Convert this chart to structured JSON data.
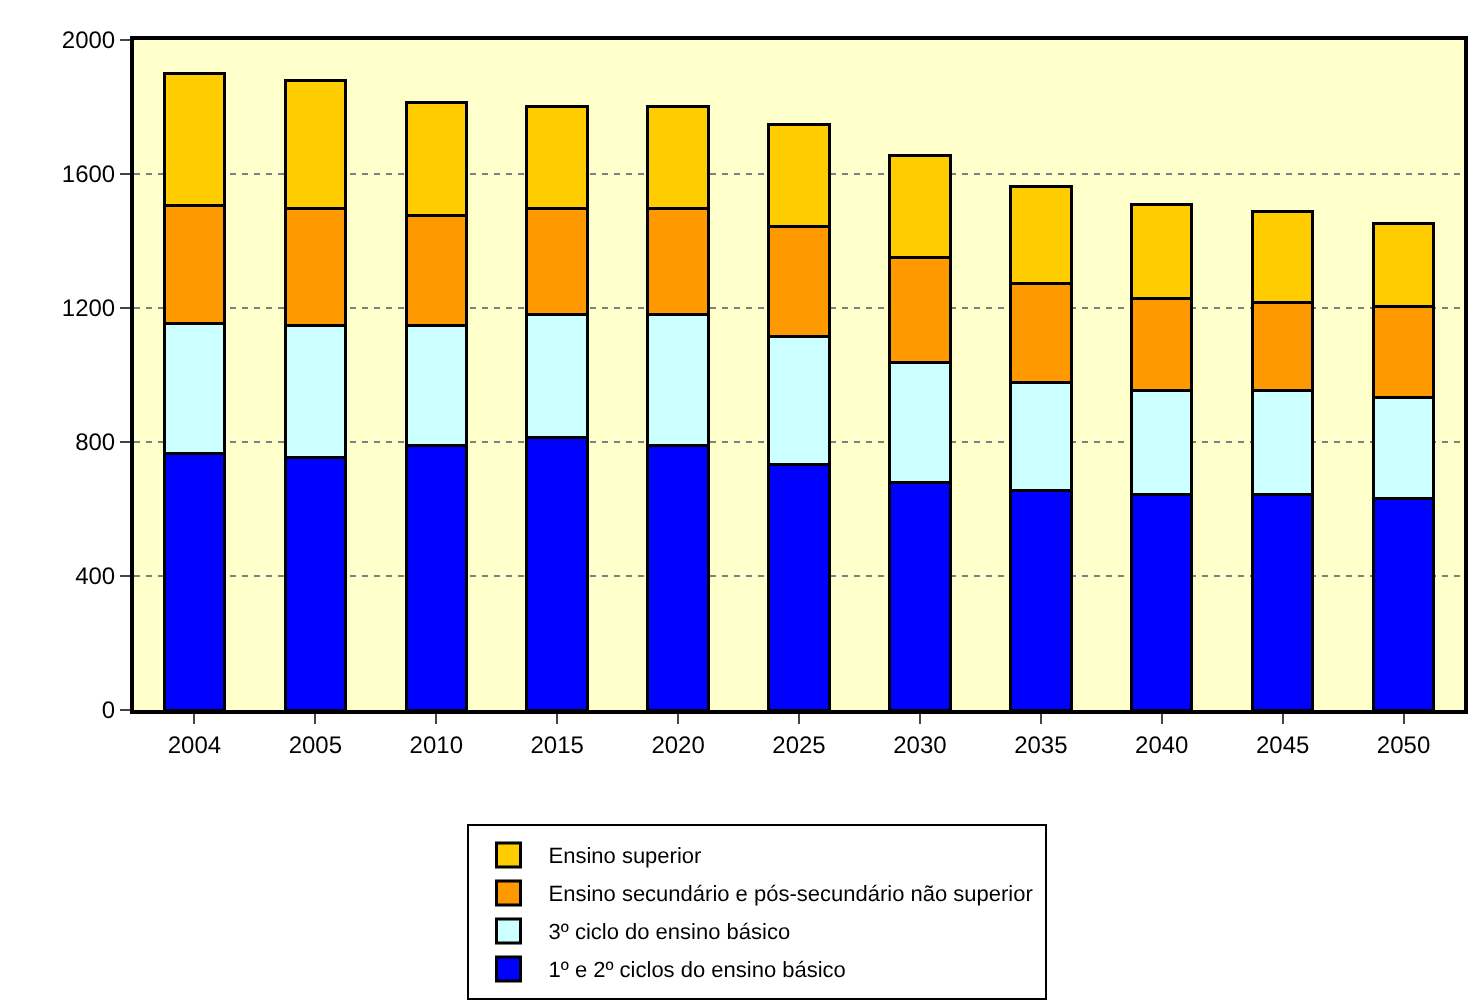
{
  "chart_data": {
    "type": "bar",
    "stacked": true,
    "categories": [
      "2004",
      "2005",
      "2010",
      "2015",
      "2020",
      "2025",
      "2030",
      "2035",
      "2040",
      "2045",
      "2050"
    ],
    "series": [
      {
        "name": "1º e 2º ciclos do ensino básico",
        "color": "#0000ff",
        "values": [
          766,
          754,
          789,
          814,
          789,
          733,
          678,
          655,
          642,
          642,
          630
        ]
      },
      {
        "name": "3º ciclo do ensino básico",
        "color": "#ccffff",
        "values": [
          387,
          395,
          360,
          368,
          393,
          381,
          359,
          323,
          313,
          313,
          304
        ]
      },
      {
        "name": "Ensino secundário e pós-secundário não superior",
        "color": "#ff9900",
        "values": [
          354,
          349,
          328,
          316,
          316,
          329,
          313,
          295,
          272,
          262,
          271
        ]
      },
      {
        "name": "Ensino superior",
        "color": "#ffcc00",
        "values": [
          394,
          382,
          335,
          304,
          304,
          305,
          305,
          291,
          282,
          271,
          248
        ]
      }
    ],
    "ylim": [
      0,
      2000
    ],
    "yticks": [
      0,
      400,
      800,
      1200,
      1600,
      2000
    ],
    "grid": "y",
    "legend": "bottom"
  }
}
